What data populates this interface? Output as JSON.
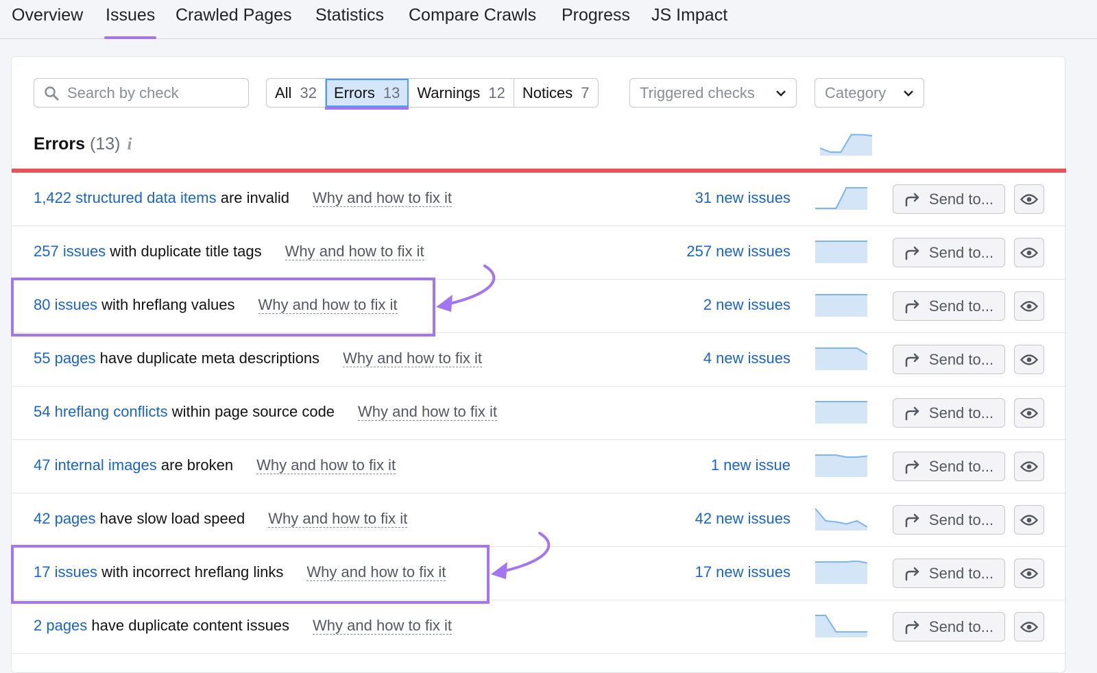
{
  "tabs": [
    {
      "label": "Overview"
    },
    {
      "label": "Issues",
      "active": true
    },
    {
      "label": "Crawled Pages"
    },
    {
      "label": "Statistics"
    },
    {
      "label": "Compare Crawls"
    },
    {
      "label": "Progress"
    },
    {
      "label": "JS Impact"
    }
  ],
  "search": {
    "placeholder": "Search by check"
  },
  "filters": [
    {
      "label": "All",
      "count": "32"
    },
    {
      "label": "Errors",
      "count": "13",
      "selected": true
    },
    {
      "label": "Warnings",
      "count": "12"
    },
    {
      "label": "Notices",
      "count": "7"
    }
  ],
  "dropdowns": {
    "triggered": "Triggered checks",
    "category": "Category"
  },
  "section": {
    "title": "Errors",
    "count": "(13)",
    "info": "i",
    "trend": [
      0.3,
      0.1,
      0.1,
      0.95,
      0.95,
      0.9
    ]
  },
  "colors": {
    "accent": "#a475f0",
    "error": "#e85459",
    "link": "#1a64c7",
    "spark": "#d3e5f7"
  },
  "why_label": "Why and how to fix it",
  "send_label": "Send to...",
  "rows": [
    {
      "link": "1,422 structured data items",
      "text": " are invalid",
      "new": "31 new issues",
      "trend": [
        0,
        0,
        0,
        1,
        1,
        1
      ]
    },
    {
      "link": "257 issues",
      "text": " with duplicate title tags",
      "new": "257 new issues",
      "trend": [
        1,
        1,
        1,
        1,
        1,
        1
      ]
    },
    {
      "link": "80 issues",
      "text": " with hreflang values",
      "new": "2 new issues",
      "trend": [
        1,
        1,
        1,
        1,
        1,
        1
      ],
      "highlighted": true
    },
    {
      "link": "55 pages",
      "text": " have duplicate meta descriptions",
      "new": "4 new issues",
      "trend": [
        1,
        1,
        1,
        1,
        1,
        0.7
      ]
    },
    {
      "link": "54 hreflang conflicts",
      "text": " within page source code",
      "new": "",
      "trend": [
        1,
        1,
        1,
        1,
        1,
        1
      ]
    },
    {
      "link": "47 internal images",
      "text": " are broken",
      "new": "1 new issue",
      "trend": [
        1,
        1,
        1,
        0.9,
        0.9,
        0.95
      ]
    },
    {
      "link": "42 pages",
      "text": " have slow load speed",
      "new": "42 new issues",
      "trend": [
        1,
        0.4,
        0.35,
        0.25,
        0.4,
        0.1
      ]
    },
    {
      "link": "17 issues",
      "text": " with incorrect hreflang links",
      "new": "17 new issues",
      "trend": [
        1,
        1,
        1,
        1,
        1.05,
        0.95
      ],
      "highlighted": true
    },
    {
      "link": "2 pages",
      "text": " have duplicate content issues",
      "new": "",
      "trend": [
        1,
        1,
        0.2,
        0.2,
        0.2,
        0.2
      ]
    }
  ]
}
